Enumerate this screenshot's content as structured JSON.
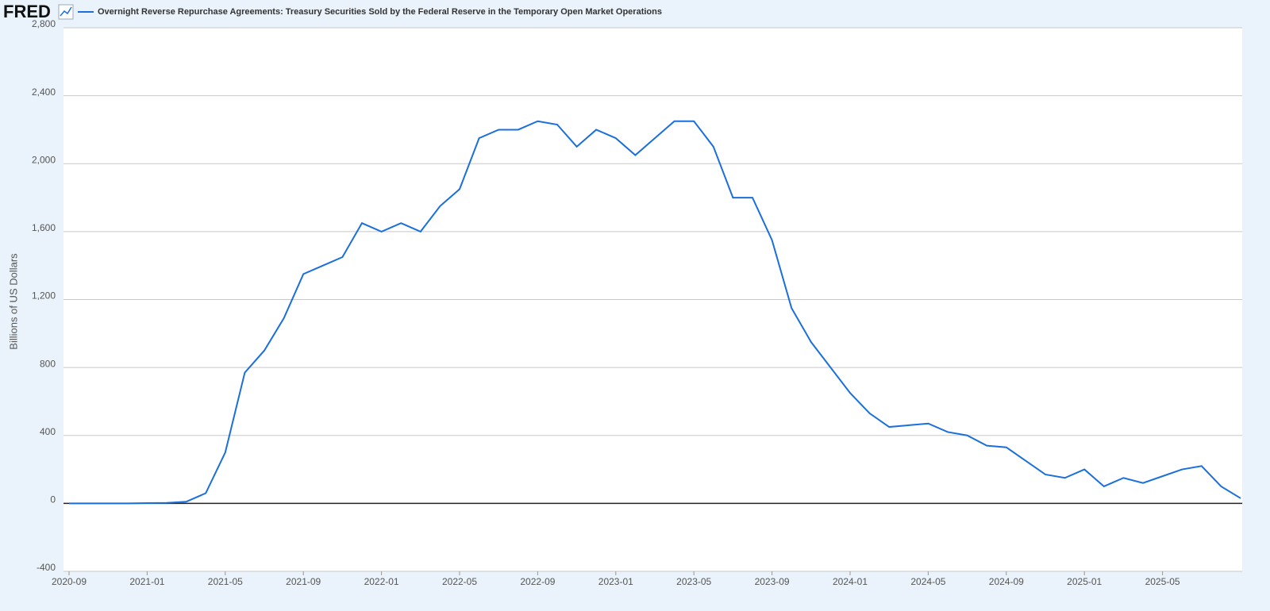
{
  "chart_data": {
    "type": "line",
    "logo": "FRED",
    "title": "Overnight Reverse Repurchase Agreements: Treasury Securities Sold by the Federal Reserve in the Temporary Open Market Operations",
    "ylabel": "Billions of US Dollars",
    "x": [
      "2020-09",
      "2020-10",
      "2020-11",
      "2020-12",
      "2021-01",
      "2021-02",
      "2021-03",
      "2021-04",
      "2021-05",
      "2021-06",
      "2021-07",
      "2021-08",
      "2021-09",
      "2021-10",
      "2021-11",
      "2021-12",
      "2022-01",
      "2022-02",
      "2022-03",
      "2022-04",
      "2022-05",
      "2022-06",
      "2022-07",
      "2022-08",
      "2022-09",
      "2022-10",
      "2022-11",
      "2022-12",
      "2023-01",
      "2023-02",
      "2023-03",
      "2023-04",
      "2023-05",
      "2023-06",
      "2023-07",
      "2023-08",
      "2023-09",
      "2023-10",
      "2023-11",
      "2023-12",
      "2024-01",
      "2024-02",
      "2024-03",
      "2024-04",
      "2024-05",
      "2024-06",
      "2024-07",
      "2024-08",
      "2024-09",
      "2024-10",
      "2024-11",
      "2024-12",
      "2025-01",
      "2025-02",
      "2025-03",
      "2025-04",
      "2025-05",
      "2025-06",
      "2025-07",
      "2025-08",
      "2025-09"
    ],
    "series": [
      {
        "name": "Overnight Reverse Repurchase Agreements: Treasury Securities Sold by the Federal Reserve in the Temporary Open Market Operations",
        "color": "#1a6fdc",
        "values": [
          0,
          0,
          0,
          0,
          2,
          3,
          10,
          60,
          300,
          770,
          900,
          1090,
          1350,
          1400,
          1450,
          1650,
          1600,
          1650,
          1600,
          1750,
          1850,
          2150,
          2200,
          2200,
          2250,
          2230,
          2100,
          2200,
          2150,
          2050,
          2150,
          2250,
          2250,
          2100,
          1800,
          1800,
          1550,
          1150,
          950,
          800,
          650,
          530,
          450,
          460,
          470,
          420,
          400,
          340,
          330,
          250,
          170,
          150,
          200,
          100,
          150,
          120,
          160,
          200,
          220,
          100,
          30
        ]
      }
    ],
    "xlim": [
      "2020-09",
      "2025-09"
    ],
    "xticks": [
      "2020-09",
      "2021-01",
      "2021-05",
      "2021-09",
      "2022-01",
      "2022-05",
      "2022-09",
      "2023-01",
      "2023-05",
      "2023-09",
      "2024-01",
      "2024-05",
      "2024-09",
      "2025-01",
      "2025-05"
    ],
    "ylim": [
      -400,
      2800
    ],
    "yticks": [
      -400,
      0,
      400,
      800,
      {
        "value": 1200,
        "label": "1,200"
      },
      {
        "value": 1600,
        "label": "1,600"
      },
      {
        "value": 2000,
        "label": "2,000"
      },
      {
        "value": 2400,
        "label": "2,400"
      },
      {
        "value": 2800,
        "label": "2,800"
      }
    ],
    "grid": true
  }
}
